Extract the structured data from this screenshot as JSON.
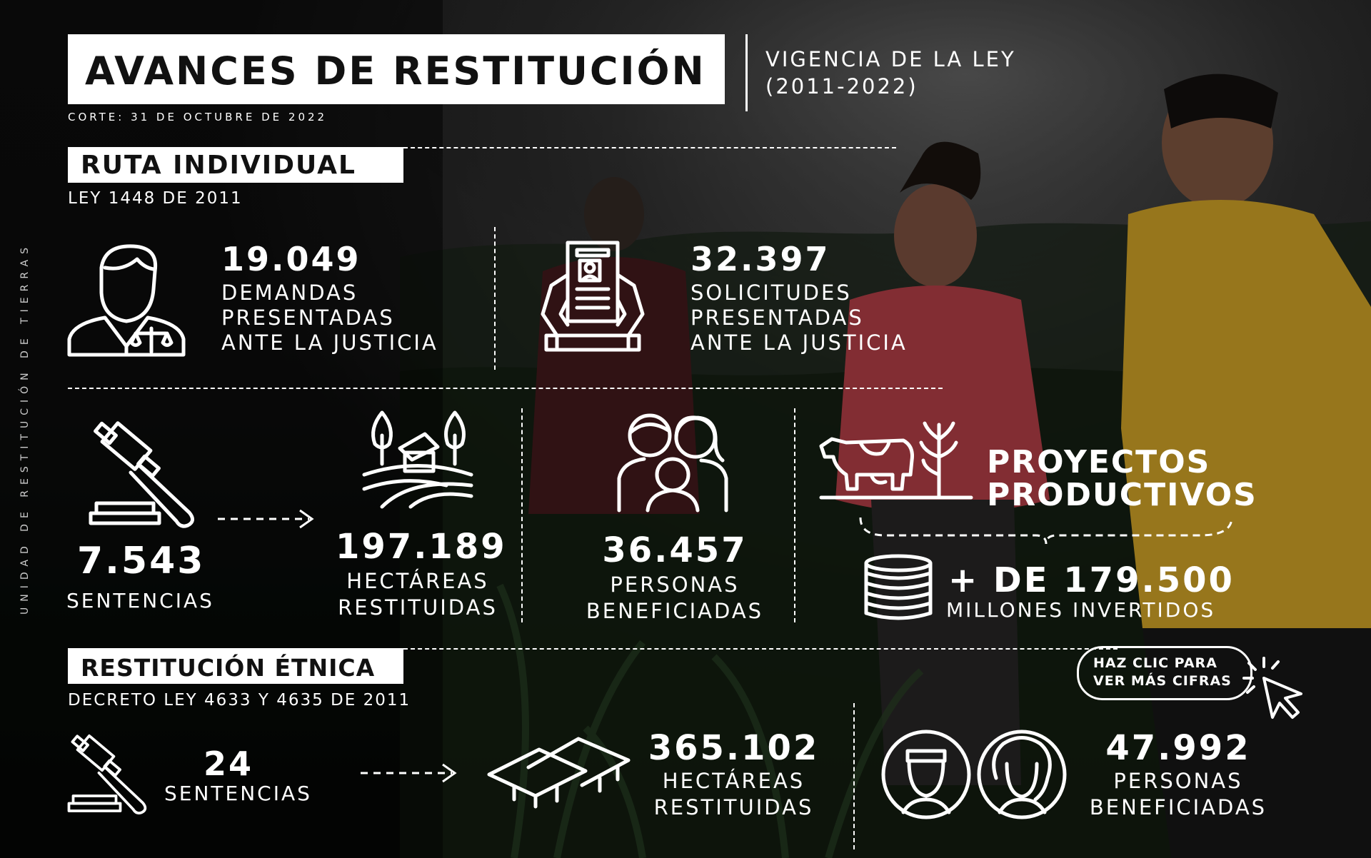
{
  "header": {
    "title": "AVANCES DE RESTITUCIÓN",
    "subtitle_line1": "VIGENCIA DE LA LEY",
    "subtitle_line2": "(2011-2022)",
    "cutoff": "CORTE: 31 DE OCTUBRE DE 2022"
  },
  "side_label": "UNIDAD DE RESTITUCIÓN DE TIERRAS",
  "ruta_individual": {
    "title": "RUTA INDIVIDUAL",
    "law": "LEY 1448 DE 2011",
    "demandas": {
      "value": "19.049",
      "line1": "DEMANDAS",
      "line2": "PRESENTADAS",
      "line3": "ANTE LA JUSTICIA",
      "icon": "lawyer-icon"
    },
    "solicitudes": {
      "value": "32.397",
      "line1": "SOLICITUDES",
      "line2": "PRESENTADAS",
      "line3": "ANTE LA JUSTICIA",
      "icon": "document-hands-icon"
    },
    "sentencias": {
      "value": "7.543",
      "label": "SENTENCIAS",
      "icon": "gavel-icon"
    },
    "hectareas": {
      "value": "197.189",
      "line1": "HECTÁREAS",
      "line2": "RESTITUIDAS",
      "icon": "farm-icon"
    },
    "personas": {
      "value": "36.457",
      "line1": "PERSONAS",
      "line2": "BENEFICIADAS",
      "icon": "family-icon"
    },
    "proyectos": {
      "line1": "PROYECTOS",
      "line2": "PRODUCTIVOS",
      "value": "+ DE 179.500",
      "label": "MILLONES INVERTIDOS",
      "icon": "cow-corn-icon",
      "coins_icon": "coins-icon"
    }
  },
  "restitucion_etnica": {
    "title": "RESTITUCIÓN ÉTNICA",
    "law": "DECRETO LEY 4633 Y 4635 DE 2011",
    "sentencias": {
      "value": "24",
      "label": "SENTENCIAS",
      "icon": "gavel-icon"
    },
    "hectareas": {
      "value": "365.102",
      "line1": "HECTÁREAS",
      "line2": "RESTITUIDAS",
      "icon": "huts-icon"
    },
    "personas": {
      "value": "47.992",
      "line1": "PERSONAS",
      "line2": "BENEFICIADAS",
      "icon": "ethnic-faces-icon"
    }
  },
  "cta": {
    "line1": "HAZ CLIC PARA",
    "line2": "VER MÁS CIFRAS",
    "icon": "cursor-click-icon"
  },
  "colors": {
    "background": "#0a0a0a",
    "foreground": "#ffffff",
    "shirt_pink": "#c8454f",
    "shirt_yellow": "#e8b62c"
  }
}
